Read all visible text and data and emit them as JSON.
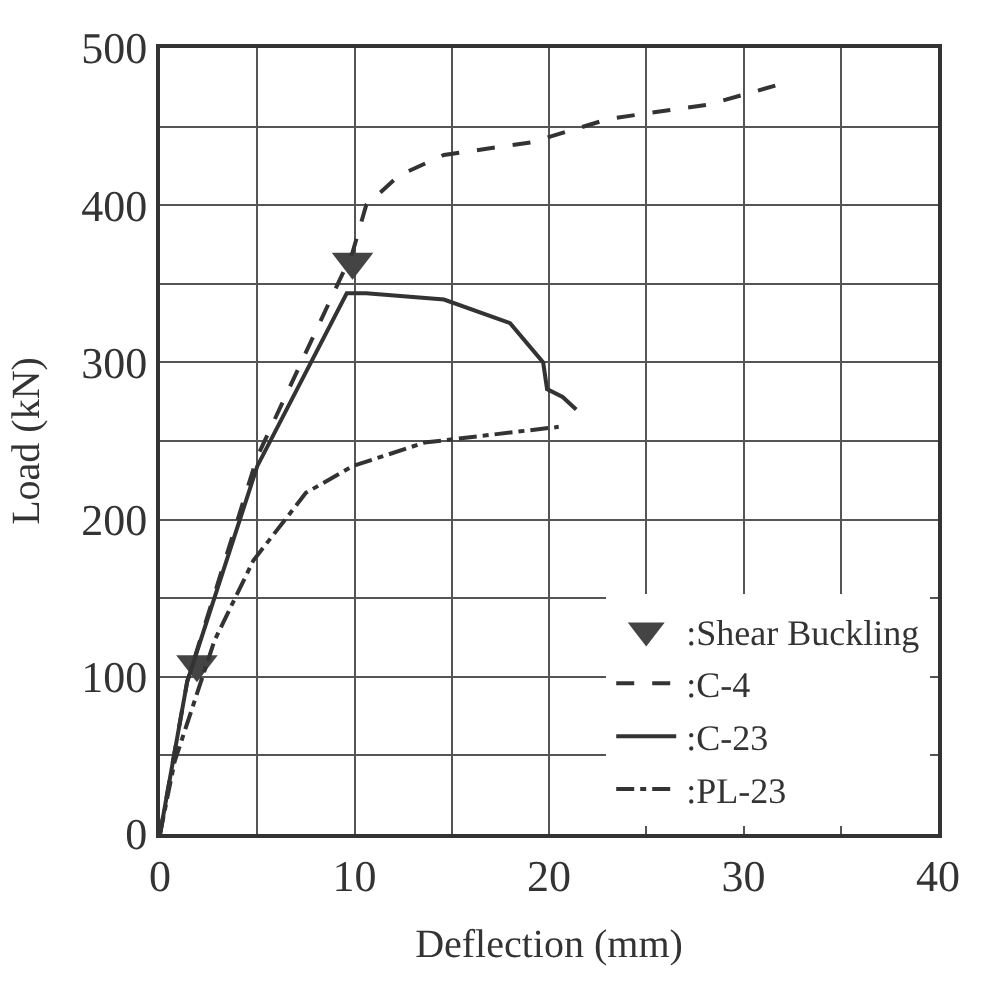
{
  "chart_data": {
    "type": "line",
    "xlabel": "Deflection (mm)",
    "ylabel": "Load (kN)",
    "xlim": [
      0,
      40
    ],
    "ylim": [
      0,
      500
    ],
    "xticks": [
      0,
      {
        "value": 5,
        "label": null
      },
      10,
      {
        "value": 15,
        "label": null
      },
      20,
      {
        "value": 25,
        "label": null
      },
      30,
      {
        "value": 35,
        "label": null
      },
      40
    ],
    "yticks": [
      0,
      {
        "value": 50,
        "label": null
      },
      100,
      {
        "value": 150,
        "label": null
      },
      200,
      {
        "value": 250,
        "label": null
      },
      300,
      {
        "value": 350,
        "label": null
      },
      400,
      {
        "value": 450,
        "label": null
      },
      500
    ],
    "grid": true,
    "legend": "bottom right",
    "series": [
      {
        "name": ":Shear Buckling",
        "type": "scatter",
        "marker": "triangle",
        "color": "#444444",
        "x": [
          1.9,
          9.9
        ],
        "values": [
          108,
          364
        ]
      },
      {
        "name": ":C-4",
        "line_style": "dashed",
        "color": "#333333",
        "x": [
          0,
          1.4,
          5,
          9.9,
          10.6,
          12.3,
          14.6,
          19.1,
          23.1,
          28.2,
          31.9
        ],
        "values": [
          0,
          97,
          240,
          370,
          400,
          419,
          432,
          440,
          455,
          464,
          477
        ]
      },
      {
        "name": ":C-23",
        "line_style": "solid",
        "color": "#333333",
        "x": [
          0,
          1.4,
          5,
          9.6,
          10.6,
          14.6,
          18,
          19.7,
          19.9,
          20.7,
          21.4
        ],
        "values": [
          0,
          97,
          234,
          344,
          344,
          340,
          325,
          300,
          283,
          278,
          270
        ]
      },
      {
        "name": ":PL-23",
        "line_style": "dashdot",
        "color": "#333333",
        "x": [
          0,
          0.75,
          2.8,
          4.8,
          7.5,
          9.9,
          13.6,
          20.5
        ],
        "values": [
          0,
          46,
          123,
          174,
          217,
          234,
          249,
          259
        ]
      }
    ]
  }
}
